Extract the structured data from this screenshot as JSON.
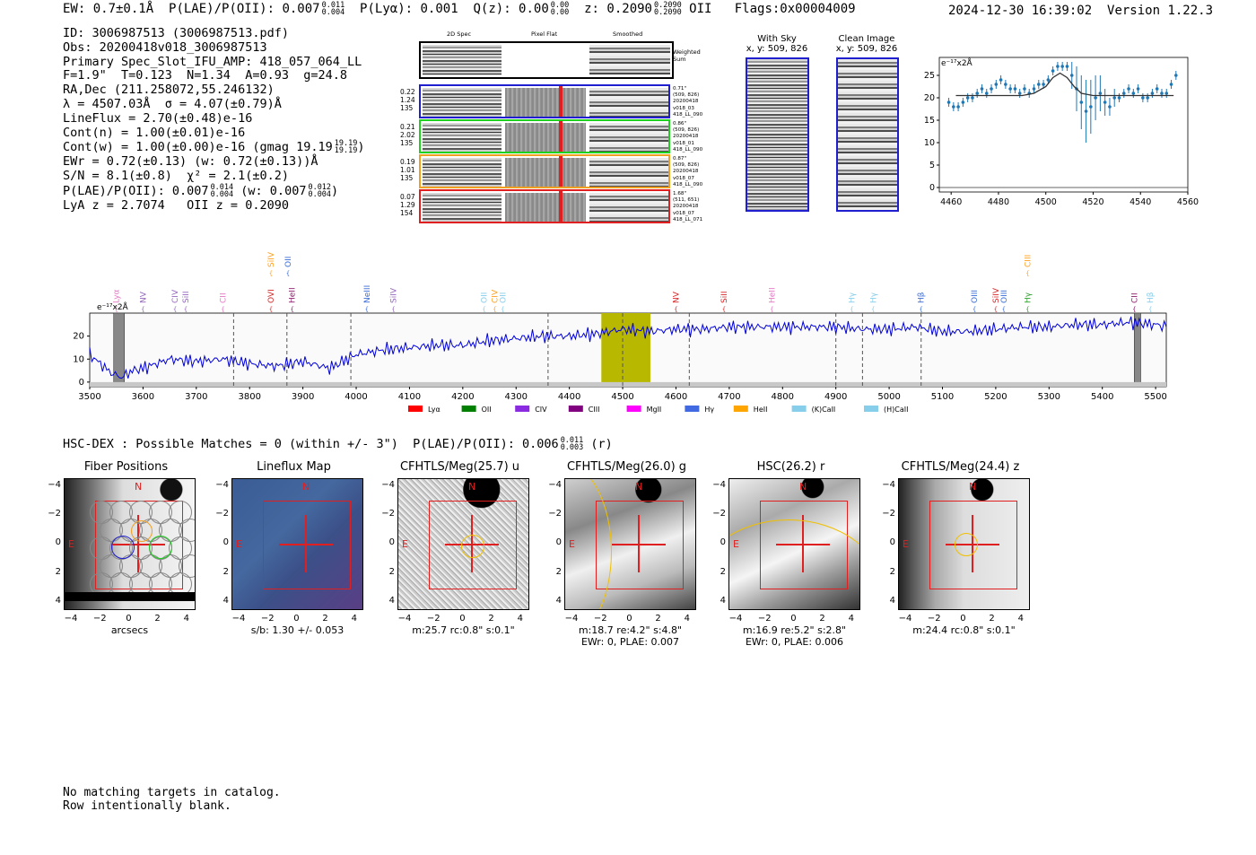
{
  "header": {
    "ew": "EW: 0.7±0.1Å",
    "plae_oii_label": "P(LAE)/P(OII): 0.007",
    "plae_oii_hi": "0.011",
    "plae_oii_lo": "0.004",
    "plya": "P(Lyα): 0.001",
    "qz_label": "Q(z): 0.00",
    "qz_hi": "0.00",
    "qz_lo": "0.00",
    "z_label": "z: 0.2090",
    "z_hi": "0.2090",
    "z_lo": "0.2090",
    "z_line": "OII",
    "flags": "Flags:0x00004009",
    "timestamp": "2024-12-30 16:39:02",
    "version": "Version 1.22.3"
  },
  "info": {
    "id": "ID: 3006987513 (3006987513.pdf)",
    "obs": "Obs: 20200418v018_3006987513",
    "primary": "Primary Spec_Slot_IFU_AMP: 418_057_064_LL",
    "fta": "F=1.9\"  T=0.123  N=1.34  A=0.93  g=24.8",
    "radec": "RA,Dec (211.258072,55.246132)",
    "lambda": "λ = 4507.03Å  σ = 4.07(±0.79)Å",
    "lineflux": "LineFlux = 2.70(±0.48)e-16",
    "contn": "Cont(n) = 1.00(±0.01)e-16",
    "contw": "Cont(w) = 1.00(±0.00)e-16 (gmag 19.19",
    "contw_hi": "19.19",
    "contw_lo": "19.19",
    "ewr": "EWr = 0.72(±0.13) (w: 0.72(±0.13))Å",
    "sn": "S/N = 8.1(±0.8)  χ² = 2.1(±0.2)",
    "plae": "P(LAE)/P(OII): 0.007",
    "plae_hi": "0.014",
    "plae_lo": "0.004",
    "plae_w": "(w: 0.007",
    "plae_w_hi": "0.012",
    "plae_w_lo": "0.004",
    "lya_z": "LyA z = 2.7074   OII z = 0.2090"
  },
  "cutouts": {
    "col_titles": [
      "2D Spec",
      "Pixel Flat",
      "Smoothed"
    ],
    "weighted_sum": "Weighted Sum",
    "rows": [
      {
        "left": [
          "0.22",
          "1.24",
          "135"
        ],
        "right": [
          "0.71\"",
          "(509, 826)",
          "20200418",
          "v018_03",
          "418_LL_090"
        ],
        "color": "#1f1fd0"
      },
      {
        "left": [
          "0.21",
          "2.02",
          "135"
        ],
        "right": [
          "0.86\"",
          "(509, 826)",
          "20200418",
          "v018_01",
          "418_LL_090"
        ],
        "color": "#1fd01f"
      },
      {
        "left": [
          "0.19",
          "1.01",
          "135"
        ],
        "right": [
          "0.87\"",
          "(509, 826)",
          "20200418",
          "v018_07",
          "418_LL_090"
        ],
        "color": "#f0a020"
      },
      {
        "left": [
          "0.07",
          "1.29",
          "154"
        ],
        "right": [
          "1.68\"",
          "(511, 651)",
          "20200418",
          "v018_07",
          "418_LL_071"
        ],
        "color": "#e02020"
      }
    ],
    "with_sky_title": "With Sky",
    "with_sky_xy": "x, y: 509, 826",
    "clean_title": "Clean Image",
    "clean_xy": "x, y: 509, 826"
  },
  "zoom_chart": {
    "unit": "e⁻¹⁷x2Å"
  },
  "lines": [
    {
      "name": "Lyα",
      "w": 3550,
      "color": "#e377c2",
      "row": 1
    },
    {
      "name": "NV",
      "w": 3600,
      "color": "#9467bd",
      "row": 1
    },
    {
      "name": "CIV",
      "w": 3660,
      "color": "#9467bd",
      "row": 1
    },
    {
      "name": "SiII",
      "w": 3680,
      "color": "#9467bd",
      "row": 1
    },
    {
      "name": "CII",
      "w": 3750,
      "color": "#e377c2",
      "row": 1
    },
    {
      "name": "SiIV",
      "w": 3840,
      "color": "#ff9f1c",
      "row": 0
    },
    {
      "name": "OII",
      "w": 3872,
      "color": "#3a6cd6",
      "row": 0
    },
    {
      "name": "OVI",
      "w": 3840,
      "color": "#d62728",
      "row": 1
    },
    {
      "name": "HeII",
      "w": 3880,
      "color": "#8b1a6b",
      "row": 1
    },
    {
      "name": "NeIII",
      "w": 4020,
      "color": "#3a6cd6",
      "row": 1
    },
    {
      "name": "SiIV",
      "w": 4070,
      "color": "#9467bd",
      "row": 1
    },
    {
      "name": "OII",
      "w": 4240,
      "color": "#87ceeb",
      "row": 1
    },
    {
      "name": "CIV",
      "w": 4260,
      "color": "#ff9f1c",
      "row": 1
    },
    {
      "name": "OII",
      "w": 4275,
      "color": "#87ceeb",
      "row": 1
    },
    {
      "name": "NV",
      "w": 4600,
      "color": "#d62728",
      "row": 1
    },
    {
      "name": "SiII",
      "w": 4690,
      "color": "#d62728",
      "row": 1
    },
    {
      "name": "HeII",
      "w": 4780,
      "color": "#e377c2",
      "row": 1
    },
    {
      "name": "Hγ",
      "w": 4930,
      "color": "#87ceeb",
      "row": 1
    },
    {
      "name": "Hγ",
      "w": 4970,
      "color": "#87ceeb",
      "row": 1
    },
    {
      "name": "Hβ",
      "w": 5060,
      "color": "#3a6cd6",
      "row": 1
    },
    {
      "name": "OIII",
      "w": 5160,
      "color": "#3a6cd6",
      "row": 1
    },
    {
      "name": "SiIV",
      "w": 5200,
      "color": "#d62728",
      "row": 1
    },
    {
      "name": "OIII",
      "w": 5215,
      "color": "#3a6cd6",
      "row": 1
    },
    {
      "name": "CIII",
      "w": 5260,
      "color": "#ff9f1c",
      "row": 0
    },
    {
      "name": "Hγ",
      "w": 5260,
      "color": "#2ca02c",
      "row": 1
    },
    {
      "name": "CII",
      "w": 5460,
      "color": "#8b1a6b",
      "row": 1
    },
    {
      "name": "Hβ",
      "w": 5490,
      "color": "#87ceeb",
      "row": 1
    }
  ],
  "legend": [
    {
      "name": "Lyα",
      "color": "#ff0000"
    },
    {
      "name": "OII",
      "color": "#008000"
    },
    {
      "name": "CIV",
      "color": "#8a2be2"
    },
    {
      "name": "CIII",
      "color": "#800080"
    },
    {
      "name": "MgII",
      "color": "#ff00ff"
    },
    {
      "name": "Hγ",
      "color": "#4169e1"
    },
    {
      "name": "HeII",
      "color": "#ffa500"
    },
    {
      "name": "(K)CaII",
      "color": "#87ceeb"
    },
    {
      "name": "(H)CaII",
      "color": "#87ceeb"
    }
  ],
  "hsc_line": "HSC-DEX : Possible Matches = 0 (within +/- 3\")  P(LAE)/P(OII): 0.006",
  "hsc_hi": "0.011",
  "hsc_lo": "0.003",
  "hsc_band": "(r)",
  "panels": [
    {
      "title": "Fiber Positions",
      "cap1": "arcsecs",
      "cap2": ""
    },
    {
      "title": "Lineflux Map",
      "cap1": "s/b: 1.30 +/- 0.053",
      "cap2": ""
    },
    {
      "title": "CFHTLS/Meg(25.7) u",
      "cap1": "m:25.7 rc:0.8\"  s:0.1\"",
      "cap2": ""
    },
    {
      "title": "CFHTLS/Meg(26.0) g",
      "cap1": "m:18.7  re:4.2\"  s:4.8\"",
      "cap2": "EWr: 0, PLAE: 0.007"
    },
    {
      "title": "HSC(26.2) r",
      "cap1": "m:16.9  re:5.2\"  s:2.8\"",
      "cap2": "EWr: 0, PLAE: 0.006"
    },
    {
      "title": "CFHTLS/Meg(24.4) z",
      "cap1": "m:24.4 rc:0.8\"  s:0.1\"",
      "cap2": ""
    }
  ],
  "panel_labels": {
    "north": "N",
    "east": "E"
  },
  "footer": {
    "line1": "No matching targets in catalog.",
    "line2": "Row intentionally blank."
  },
  "chart_data": [
    {
      "type": "line",
      "title": "",
      "ylabel": "e⁻¹⁷x2Å",
      "xlim": [
        3500,
        5520
      ],
      "ylim": [
        -2,
        30
      ],
      "xticks": [
        3500,
        3600,
        3700,
        3800,
        3900,
        4000,
        4100,
        4200,
        4300,
        4400,
        4500,
        4600,
        4700,
        4800,
        4900,
        5000,
        5100,
        5200,
        5300,
        5400,
        5500
      ],
      "yticks": [
        0,
        10,
        20
      ],
      "highlight_range": [
        4460,
        4552
      ],
      "series": [
        {
          "name": "spectrum",
          "color": "#0000dd",
          "x": [
            3500,
            3520,
            3540,
            3560,
            3580,
            3600,
            3650,
            3700,
            3750,
            3800,
            3850,
            3900,
            3950,
            4000,
            4050,
            4100,
            4150,
            4200,
            4250,
            4300,
            4350,
            4400,
            4450,
            4500,
            4550,
            4600,
            4650,
            4700,
            4750,
            4800,
            4850,
            4900,
            4950,
            5000,
            5050,
            5100,
            5150,
            5200,
            5250,
            5300,
            5350,
            5400,
            5450,
            5500,
            5520
          ],
          "y": [
            12,
            8,
            4,
            2,
            5,
            6,
            10,
            9,
            10,
            8,
            7,
            9,
            6,
            12,
            14,
            15,
            16,
            16,
            18,
            19,
            20,
            20,
            21,
            23,
            22,
            23,
            23,
            24,
            24,
            24,
            24,
            24,
            23,
            23,
            24,
            22,
            22,
            23,
            24,
            24,
            25,
            25,
            26,
            25,
            24
          ]
        }
      ]
    },
    {
      "type": "scatter",
      "title": "",
      "ylabel": "e⁻¹⁷x2Å",
      "xlim": [
        4455,
        4560
      ],
      "ylim": [
        -1,
        29
      ],
      "xticks": [
        4460,
        4480,
        4500,
        4520,
        4540,
        4560
      ],
      "yticks": [
        0,
        5,
        10,
        15,
        20,
        25
      ],
      "series": [
        {
          "name": "data",
          "color": "#1f77b4",
          "x": [
            4459,
            4461,
            4463,
            4465,
            4467,
            4469,
            4471,
            4473,
            4475,
            4477,
            4479,
            4481,
            4483,
            4485,
            4487,
            4489,
            4491,
            4493,
            4495,
            4497,
            4499,
            4501,
            4503,
            4505,
            4507,
            4509,
            4511,
            4513,
            4515,
            4517,
            4519,
            4521,
            4523,
            4525,
            4527,
            4529,
            4531,
            4533,
            4535,
            4537,
            4539,
            4541,
            4543,
            4545,
            4547,
            4549,
            4551,
            4553,
            4555
          ],
          "y": [
            19,
            18,
            18,
            19,
            20,
            20,
            21,
            22,
            21,
            22,
            23,
            24,
            23,
            22,
            22,
            21,
            22,
            21,
            22,
            23,
            23,
            24,
            26,
            27,
            27,
            27,
            25,
            22,
            19,
            17,
            18,
            20,
            21,
            19,
            18,
            20,
            20,
            21,
            22,
            21,
            22,
            20,
            20,
            21,
            22,
            21,
            21,
            23,
            25
          ],
          "err": [
            1,
            1,
            1,
            1,
            1,
            1,
            1,
            1,
            1,
            1,
            1,
            1,
            1,
            1,
            1,
            1,
            1,
            1,
            1,
            1,
            1,
            1,
            1,
            1,
            1,
            1,
            3,
            5,
            6,
            7,
            6,
            5,
            4,
            3,
            2,
            2,
            1,
            1,
            1,
            1,
            1,
            1,
            1,
            1,
            1,
            1,
            1,
            1,
            1
          ]
        },
        {
          "name": "fit",
          "color": "#333333",
          "x": [
            4462,
            4490,
            4495,
            4500,
            4503,
            4506,
            4509,
            4512,
            4515,
            4520,
            4554
          ],
          "y": [
            20.5,
            20.5,
            21,
            22.5,
            24.5,
            25.5,
            24.5,
            22.5,
            21,
            20.5,
            20.5
          ]
        }
      ]
    }
  ]
}
